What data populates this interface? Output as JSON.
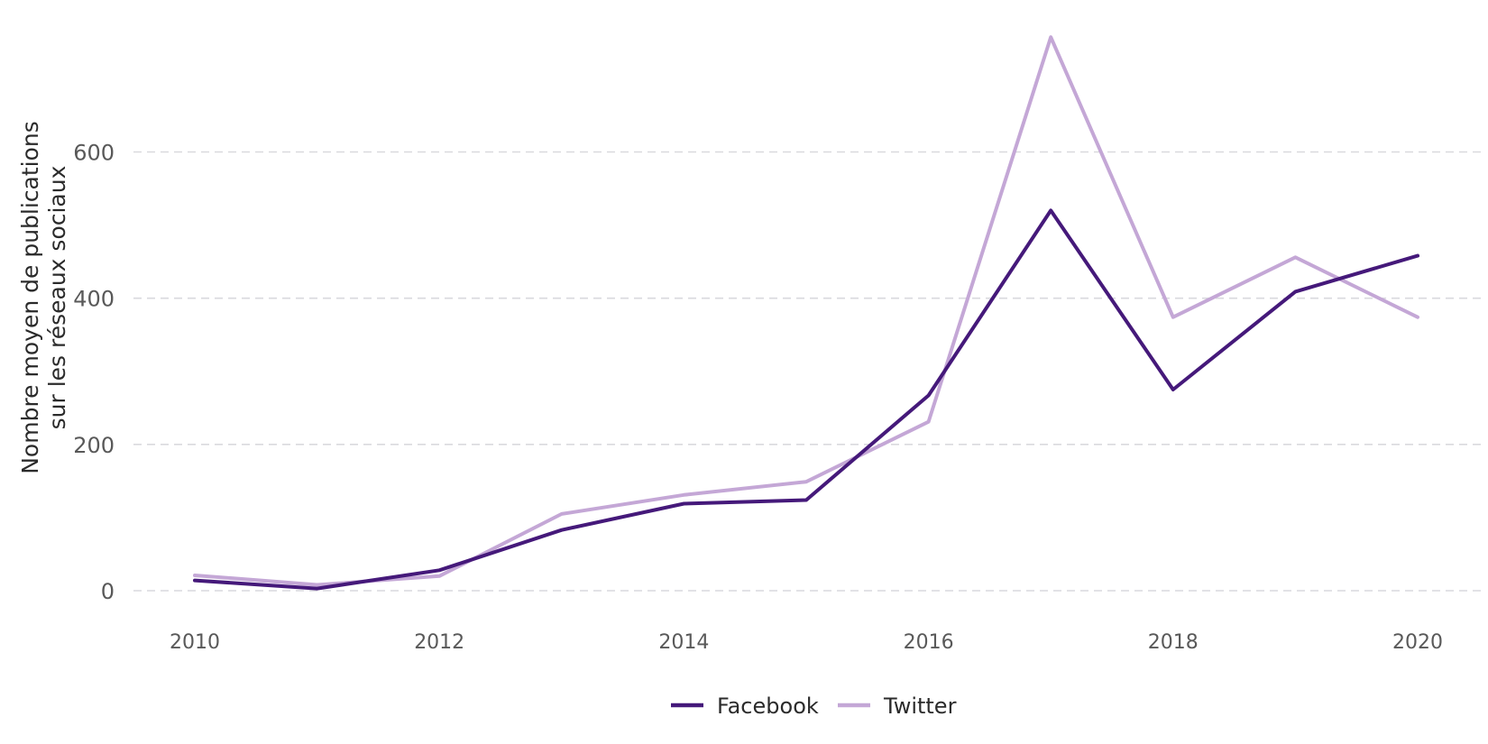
{
  "chart_data": {
    "type": "line",
    "title": "",
    "xlabel": "",
    "ylabel_line1": "Nombre moyen de publications",
    "ylabel_line2": "sur les réseaux sociaux",
    "x": [
      2010,
      2011,
      2012,
      2013,
      2014,
      2015,
      2016,
      2017,
      2018,
      2019,
      2020
    ],
    "x_ticks": [
      2010,
      2012,
      2014,
      2016,
      2018,
      2020
    ],
    "y_ticks": [
      0,
      200,
      400,
      600
    ],
    "xlim": [
      2009.55,
      2020.5
    ],
    "ylim": [
      0,
      760
    ],
    "grid": "horizontal dashed",
    "legend_position": "bottom",
    "series": [
      {
        "name": "Facebook",
        "color": "#45197a",
        "values": [
          14,
          3,
          28,
          83,
          119,
          124,
          267,
          520,
          275,
          409,
          458
        ]
      },
      {
        "name": "Twitter",
        "color": "#c4a7d6",
        "values": [
          21,
          8,
          20,
          105,
          131,
          149,
          231,
          757,
          374,
          456,
          374
        ]
      }
    ]
  }
}
